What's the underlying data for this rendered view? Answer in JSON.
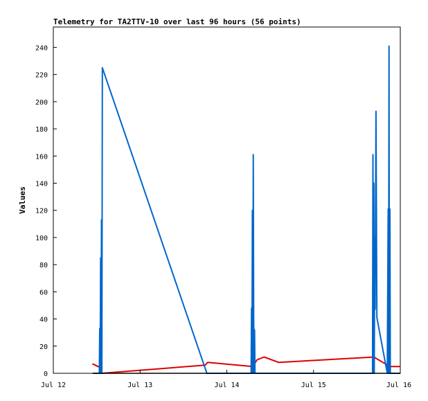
{
  "chart_data": {
    "type": "line",
    "title": "Telemetry for TA2TTV-10 over last 96 hours (56 points)",
    "xlabel": "",
    "ylabel": "Values",
    "x_ticks": [
      "Jul 12",
      "Jul 13",
      "Jul 14",
      "Jul 15",
      "Jul 16"
    ],
    "xlim_days": [
      12,
      16
    ],
    "ylim": [
      0,
      255
    ],
    "y_ticks": [
      0,
      20,
      40,
      60,
      80,
      100,
      120,
      140,
      160,
      180,
      200,
      220,
      240
    ],
    "grid": false,
    "series": [
      {
        "color": "#dd0000",
        "points": [
          [
            12.45,
            7
          ],
          [
            12.55,
            4
          ],
          [
            12.56,
            0
          ],
          [
            13.75,
            6
          ],
          [
            13.78,
            8
          ],
          [
            14.3,
            5
          ],
          [
            14.35,
            10
          ],
          [
            14.43,
            12
          ],
          [
            14.6,
            8
          ],
          [
            15.7,
            12
          ],
          [
            15.72,
            11
          ],
          [
            15.88,
            5
          ],
          [
            16.0,
            5
          ]
        ]
      },
      {
        "color": "#0066cc",
        "points": [
          [
            12.46,
            0
          ],
          [
            12.53,
            0
          ],
          [
            12.535,
            33
          ],
          [
            12.54,
            0
          ],
          [
            12.545,
            85
          ],
          [
            12.55,
            0
          ],
          [
            12.555,
            113
          ],
          [
            12.56,
            0
          ],
          [
            12.565,
            225
          ],
          [
            13.77,
            0
          ],
          [
            14.0,
            0
          ],
          [
            14.28,
            0
          ],
          [
            14.285,
            48
          ],
          [
            14.29,
            0
          ],
          [
            14.295,
            120
          ],
          [
            14.3,
            0
          ],
          [
            14.305,
            161
          ],
          [
            14.31,
            41
          ],
          [
            14.315,
            0
          ],
          [
            14.32,
            32
          ],
          [
            14.325,
            0
          ],
          [
            15.5,
            0
          ],
          [
            15.68,
            0
          ],
          [
            15.685,
            161
          ],
          [
            15.69,
            0
          ],
          [
            15.695,
            140
          ],
          [
            15.7,
            0
          ],
          [
            15.705,
            100
          ],
          [
            15.71,
            47
          ],
          [
            15.72,
            193
          ],
          [
            15.73,
            41
          ],
          [
            15.85,
            0
          ],
          [
            15.86,
            121
          ],
          [
            15.865,
            0
          ],
          [
            15.87,
            241
          ],
          [
            15.875,
            0
          ],
          [
            15.88,
            121
          ],
          [
            15.885,
            0
          ],
          [
            16.0,
            0
          ]
        ]
      },
      {
        "color": "#000000",
        "points": [
          [
            12.45,
            0
          ],
          [
            16.0,
            0
          ]
        ]
      }
    ]
  }
}
